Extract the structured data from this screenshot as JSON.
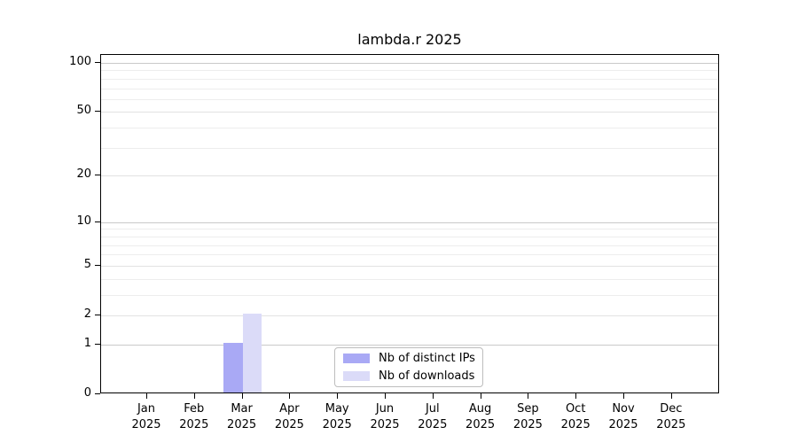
{
  "chart_data": {
    "type": "bar",
    "title": "lambda.r 2025",
    "x_months": [
      "Jan",
      "Feb",
      "Mar",
      "Apr",
      "May",
      "Jun",
      "Jul",
      "Aug",
      "Sep",
      "Oct",
      "Nov",
      "Dec"
    ],
    "x_year": "2025",
    "series": [
      {
        "name": "Nb of distinct IPs",
        "color": "#a9a9f5",
        "values": [
          0,
          0,
          1,
          0,
          0,
          0,
          0,
          0,
          0,
          0,
          0,
          0
        ]
      },
      {
        "name": "Nb of downloads",
        "color": "#dbdbf8",
        "values": [
          0,
          0,
          2,
          0,
          0,
          0,
          0,
          0,
          0,
          0,
          0,
          0
        ]
      }
    ],
    "y_scale": "log1p",
    "y_ticks": [
      0,
      1,
      2,
      5,
      10,
      20,
      50,
      100
    ],
    "y_decade_gridlines": [
      1,
      10,
      100
    ],
    "y_mid_gridlines": [
      2,
      5,
      20,
      50
    ],
    "y_minor_gridlines": [
      3,
      4,
      6,
      7,
      8,
      9,
      30,
      40,
      60,
      70,
      80,
      90
    ],
    "ylim": [
      0,
      113
    ],
    "grid": "horizontal-only",
    "legend_position": "lower-center"
  },
  "colors": {
    "axis": "#000000",
    "decade_grid": "#c9c9c9",
    "mid_grid": "#e2e2e2",
    "minor_grid": "#ededed",
    "legend_border": "#bdbdbd",
    "background": "#ffffff"
  }
}
